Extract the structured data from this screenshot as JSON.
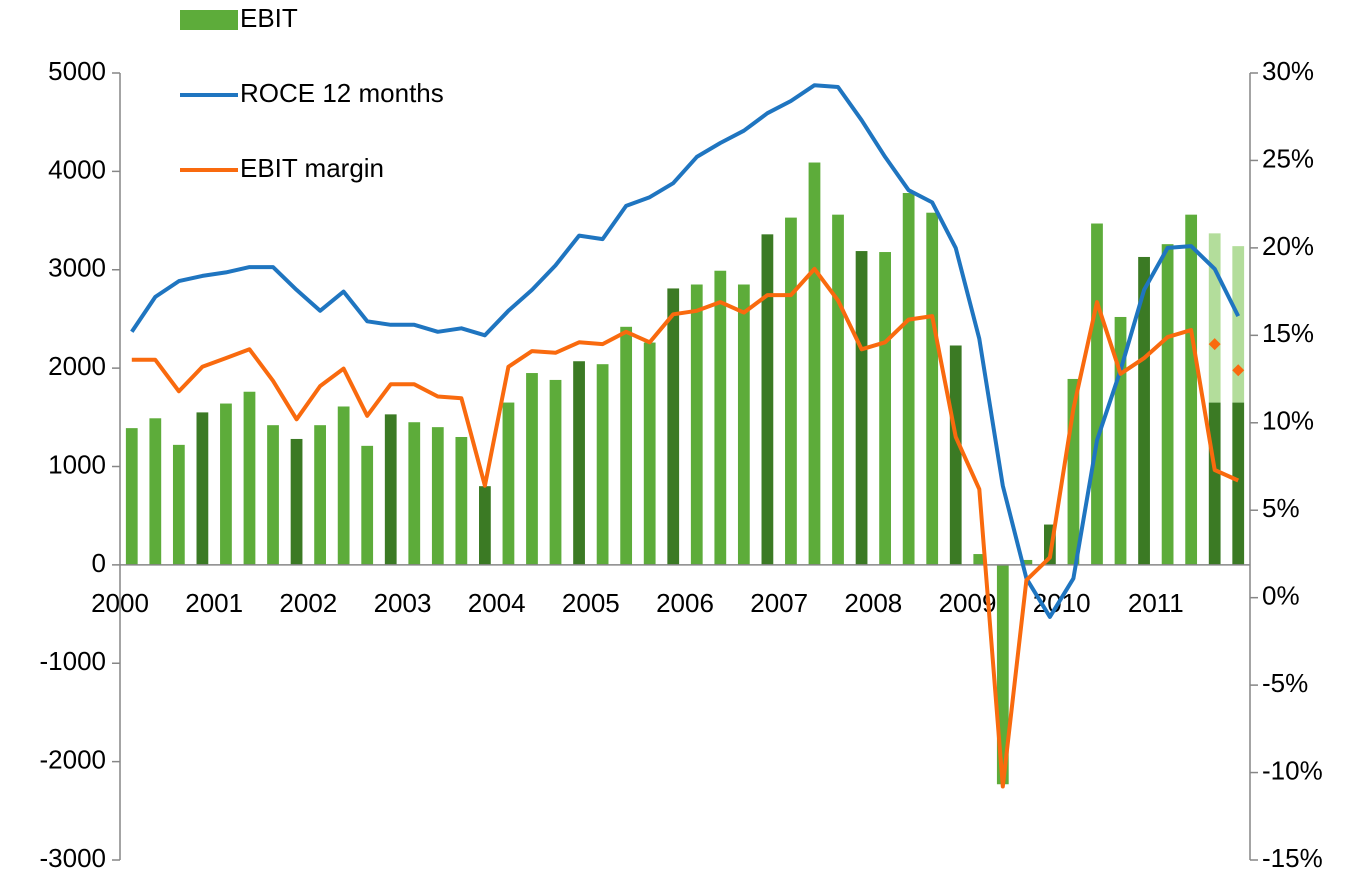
{
  "chart_data": {
    "type": "bar",
    "categories": [
      "2000",
      null,
      null,
      null,
      "2001",
      null,
      null,
      null,
      "2002",
      null,
      null,
      null,
      "2003",
      null,
      null,
      null,
      "2004",
      null,
      null,
      null,
      "2005",
      null,
      null,
      null,
      "2006",
      null,
      null,
      null,
      "2007",
      null,
      null,
      null,
      "2008",
      null,
      null,
      null,
      "2009",
      null,
      null,
      null,
      "2010",
      null,
      null,
      null,
      "2011",
      null,
      null,
      null
    ],
    "ylim": [
      -3000,
      5000
    ],
    "yticks": [
      -3000,
      -2000,
      -1000,
      0,
      1000,
      2000,
      3000,
      4000,
      5000
    ],
    "y2lim": [
      -15,
      30
    ],
    "y2ticks": [
      {
        "value": -15,
        "label": "-15%"
      },
      {
        "value": -10,
        "label": "-10%"
      },
      {
        "value": -5,
        "label": "-5%"
      },
      {
        "value": 0,
        "label": "0%"
      },
      {
        "value": 5,
        "label": "5%"
      },
      {
        "value": 10,
        "label": "10%"
      },
      {
        "value": 15,
        "label": "15%"
      },
      {
        "value": 20,
        "label": "20%"
      },
      {
        "value": 25,
        "label": "25%"
      },
      {
        "value": 30,
        "label": "30%"
      }
    ],
    "legend": "top-left",
    "series": [
      {
        "name": "EBIT",
        "type": "bar",
        "color": "#5dac3a",
        "colors": [
          "#5dac3a",
          "#5dac3a",
          "#5dac3a",
          "#3b7a24",
          "#5dac3a",
          "#5dac3a",
          "#5dac3a",
          "#3b7a24",
          "#5dac3a",
          "#5dac3a",
          "#5dac3a",
          "#3b7a24",
          "#5dac3a",
          "#5dac3a",
          "#5dac3a",
          "#3b7a24",
          "#5dac3a",
          "#5dac3a",
          "#5dac3a",
          "#3b7a24",
          "#5dac3a",
          "#5dac3a",
          "#5dac3a",
          "#3b7a24",
          "#5dac3a",
          "#5dac3a",
          "#5dac3a",
          "#3b7a24",
          "#5dac3a",
          "#5dac3a",
          "#5dac3a",
          "#3b7a24",
          "#5dac3a",
          "#5dac3a",
          "#5dac3a",
          "#3b7a24",
          "#5dac3a",
          "#5dac3a",
          "#5dac3a",
          "#3b7a24",
          "#5dac3a",
          "#5dac3a",
          "#5dac3a",
          "#3b7a24",
          "#5dac3a",
          "#5dac3a",
          "#3b7a24",
          "#3b7a24"
        ],
        "values": [
          1390,
          1490,
          1220,
          1550,
          1640,
          1760,
          1420,
          1280,
          1420,
          1610,
          1210,
          1530,
          1450,
          1400,
          1300,
          800,
          1650,
          1950,
          1880,
          2070,
          2040,
          2420,
          2260,
          2810,
          2850,
          2990,
          2850,
          3360,
          3530,
          4090,
          3560,
          3190,
          3180,
          3780,
          3580,
          2230,
          110,
          -2230,
          50,
          410,
          1890,
          3470,
          2520,
          3130,
          3260,
          3560,
          1650,
          1650
        ]
      },
      {
        "type": "bar",
        "stacked": true,
        "color": "#b3dd9b",
        "values": [
          null,
          null,
          null,
          null,
          null,
          null,
          null,
          null,
          null,
          null,
          null,
          null,
          null,
          null,
          null,
          null,
          null,
          null,
          null,
          null,
          null,
          null,
          null,
          null,
          null,
          null,
          null,
          null,
          null,
          null,
          null,
          null,
          null,
          null,
          null,
          null,
          null,
          null,
          null,
          null,
          null,
          null,
          null,
          null,
          null,
          null,
          1720,
          1590
        ]
      },
      {
        "name": "ROCE 12 months",
        "type": "line",
        "axis": "y2",
        "color": "#1f75c0",
        "values": [
          15.2,
          17.2,
          18.1,
          18.4,
          18.6,
          18.9,
          18.9,
          17.6,
          16.4,
          17.5,
          15.8,
          15.6,
          15.6,
          15.2,
          15.4,
          15.0,
          16.4,
          17.6,
          19.0,
          20.7,
          20.5,
          22.4,
          22.9,
          23.7,
          25.2,
          26.0,
          26.7,
          27.7,
          28.4,
          29.3,
          29.2,
          27.3,
          25.2,
          23.3,
          22.6,
          20.0,
          14.8,
          6.4,
          1.1,
          -1.1,
          1.1,
          9.0,
          13.0,
          17.6,
          20.0,
          20.1,
          18.8,
          16.1
        ]
      },
      {
        "name": "EBIT margin",
        "type": "line",
        "axis": "y2",
        "color": "#f96a0e",
        "values": [
          13.6,
          13.6,
          11.8,
          13.2,
          13.7,
          14.2,
          12.4,
          10.2,
          12.1,
          13.1,
          10.4,
          12.2,
          12.2,
          11.5,
          11.4,
          6.4,
          13.2,
          14.1,
          14.0,
          14.6,
          14.5,
          15.2,
          14.6,
          16.2,
          16.4,
          16.9,
          16.3,
          17.3,
          17.3,
          18.8,
          17.0,
          14.2,
          14.6,
          15.9,
          16.1,
          9.2,
          6.2,
          -10.8,
          1.0,
          2.3,
          10.8,
          16.9,
          12.8,
          13.7,
          14.9,
          15.3,
          7.3,
          6.7
        ]
      },
      {
        "type": "scatter",
        "axis": "y2",
        "color": "#f96a0e",
        "values": [
          null,
          null,
          null,
          null,
          null,
          null,
          null,
          null,
          null,
          null,
          null,
          null,
          null,
          null,
          null,
          null,
          null,
          null,
          null,
          null,
          null,
          null,
          null,
          null,
          null,
          null,
          null,
          null,
          null,
          null,
          null,
          null,
          null,
          null,
          null,
          null,
          null,
          null,
          null,
          null,
          null,
          null,
          null,
          null,
          null,
          null,
          14.5,
          13.0
        ]
      }
    ]
  }
}
